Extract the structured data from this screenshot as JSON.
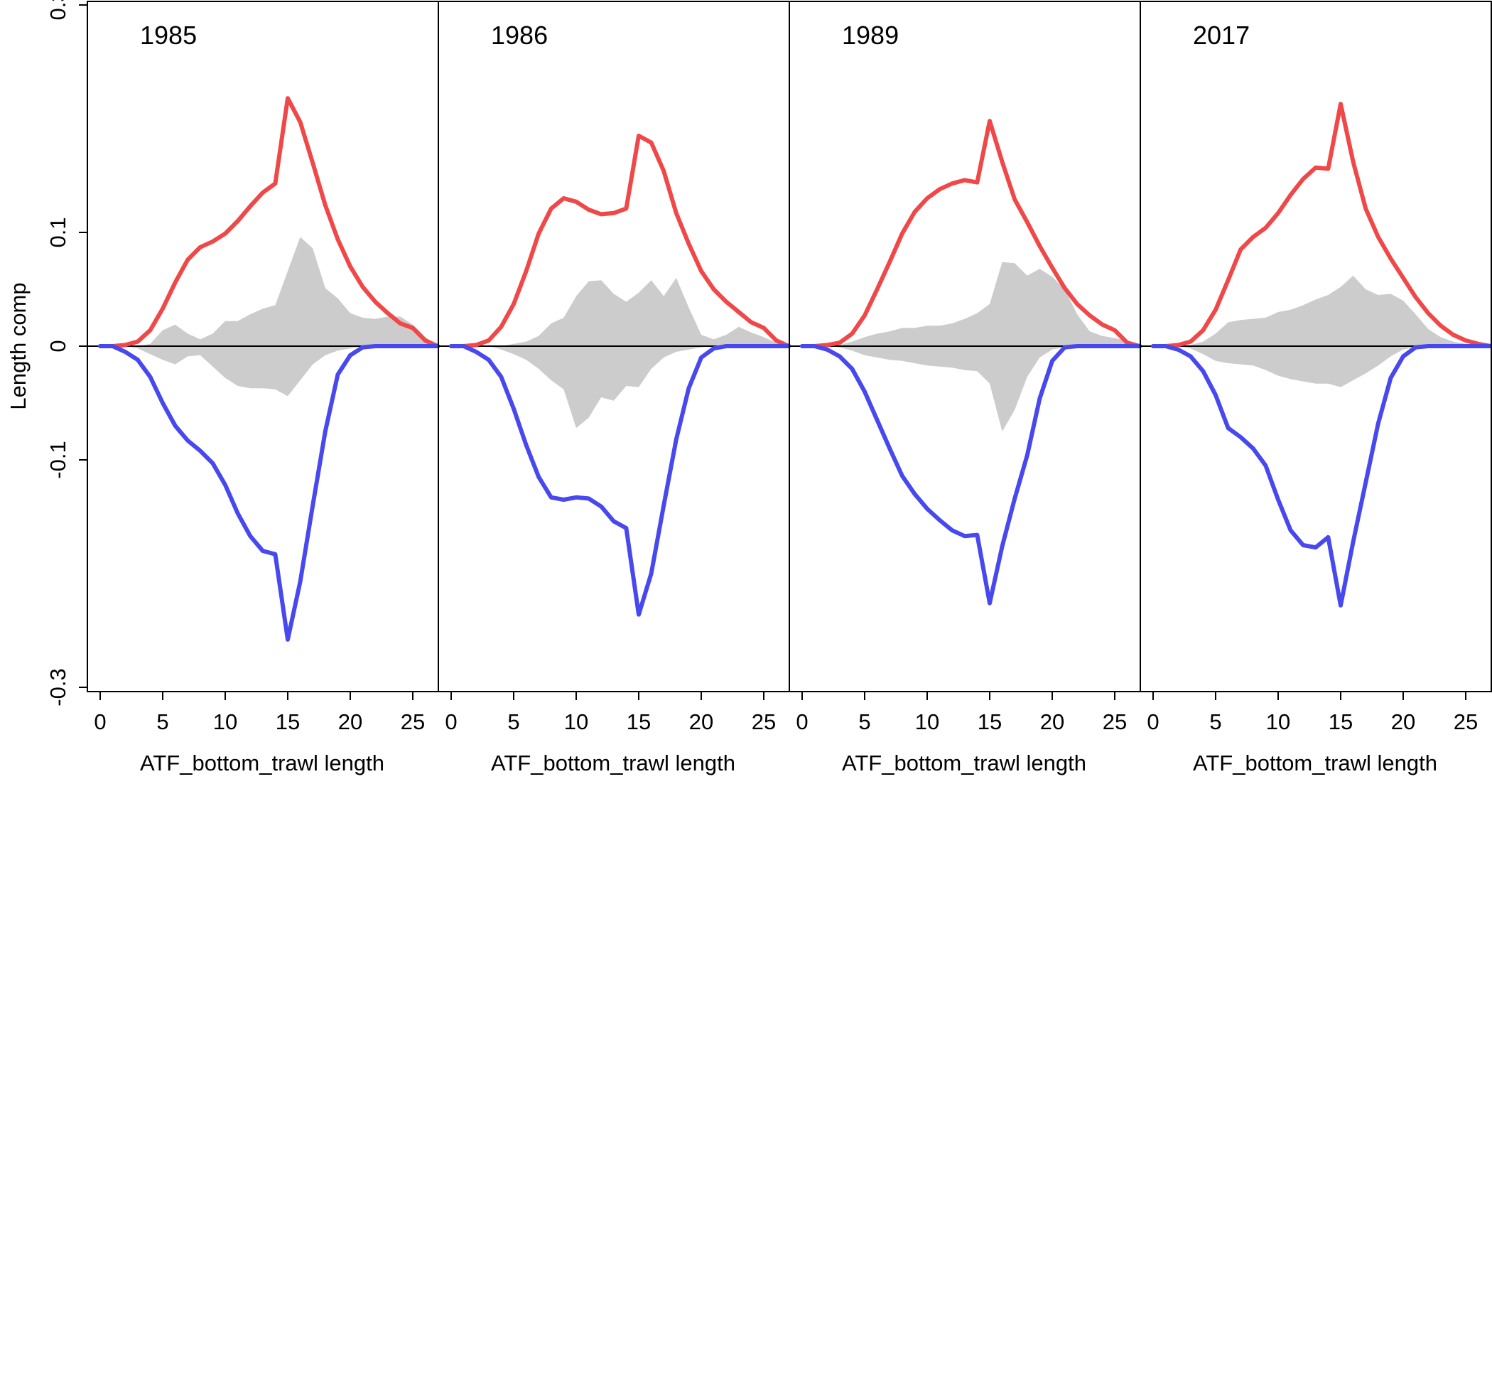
{
  "chart_data": {
    "type": "line",
    "ylabel": "Length comp",
    "xlabel": "ATF_bottom_trawl length",
    "ylim": [
      -0.3,
      0.3
    ],
    "yticks": [
      {
        "value": -0.3,
        "label": "-0.3"
      },
      {
        "value": -0.1,
        "label": "-0.1"
      },
      {
        "value": 0,
        "label": "0"
      },
      {
        "value": 0.1,
        "label": "0.1"
      },
      {
        "value": 0.3,
        "label": "0.3"
      }
    ],
    "xlim": [
      -1,
      27
    ],
    "xticks": [
      0,
      5,
      10,
      15,
      20,
      25
    ],
    "colors": {
      "female": "#f04848",
      "male": "#4848ef",
      "residual": "#cccccc",
      "axis": "#000000"
    },
    "series_names": [
      "female (positive)",
      "male (negative)",
      "residual band"
    ],
    "x": [
      0,
      1,
      2,
      3,
      4,
      5,
      6,
      7,
      8,
      9,
      10,
      11,
      12,
      13,
      14,
      15,
      16,
      17,
      18,
      19,
      20,
      21,
      22,
      23,
      24,
      25,
      26,
      27
    ],
    "panels": [
      {
        "year": "1985",
        "female": [
          0,
          0,
          0.001,
          0.004,
          0.014,
          0.033,
          0.056,
          0.076,
          0.087,
          0.092,
          0.099,
          0.11,
          0.123,
          0.135,
          0.143,
          0.218,
          0.197,
          0.161,
          0.124,
          0.094,
          0.07,
          0.052,
          0.039,
          0.029,
          0.02,
          0.016,
          0.005,
          0
        ],
        "male": [
          0,
          0,
          -0.005,
          -0.012,
          -0.027,
          -0.05,
          -0.07,
          -0.083,
          -0.092,
          -0.103,
          -0.122,
          -0.147,
          -0.167,
          -0.18,
          -0.183,
          -0.258,
          -0.207,
          -0.14,
          -0.075,
          -0.025,
          -0.008,
          -0.001,
          0,
          0,
          0,
          0,
          0,
          0
        ],
        "res_up": [
          0,
          0,
          0,
          0,
          0.002,
          0.014,
          0.019,
          0.011,
          0.006,
          0.011,
          0.022,
          0.022,
          0.028,
          0.033,
          0.036,
          0.066,
          0.096,
          0.086,
          0.051,
          0.042,
          0.029,
          0.025,
          0.024,
          0.026,
          0.026,
          0.019,
          0.008,
          0
        ],
        "res_down": [
          0,
          0,
          0,
          -0.002,
          -0.007,
          -0.012,
          -0.016,
          -0.009,
          -0.008,
          -0.018,
          -0.028,
          -0.035,
          -0.037,
          -0.037,
          -0.038,
          -0.044,
          -0.03,
          -0.016,
          -0.008,
          -0.004,
          -0.002,
          0,
          0,
          0,
          0,
          0,
          0,
          0
        ]
      },
      {
        "year": "1986",
        "female": [
          0,
          0,
          0.001,
          0.005,
          0.017,
          0.037,
          0.066,
          0.099,
          0.121,
          0.13,
          0.127,
          0.12,
          0.116,
          0.117,
          0.121,
          0.185,
          0.179,
          0.154,
          0.117,
          0.09,
          0.066,
          0.05,
          0.039,
          0.03,
          0.021,
          0.016,
          0.005,
          0
        ],
        "male": [
          0,
          0,
          -0.005,
          -0.012,
          -0.027,
          -0.055,
          -0.087,
          -0.115,
          -0.133,
          -0.135,
          -0.133,
          -0.134,
          -0.141,
          -0.154,
          -0.16,
          -0.236,
          -0.2,
          -0.14,
          -0.082,
          -0.037,
          -0.01,
          -0.002,
          0,
          0,
          0,
          0,
          0,
          0
        ],
        "res_up": [
          0,
          0,
          0,
          0,
          0,
          0.002,
          0.004,
          0.009,
          0.02,
          0.025,
          0.044,
          0.057,
          0.058,
          0.046,
          0.039,
          0.047,
          0.058,
          0.044,
          0.06,
          0.034,
          0.01,
          0.006,
          0.01,
          0.017,
          0.012,
          0.008,
          0.003,
          0
        ],
        "res_down": [
          0,
          0,
          0,
          0,
          -0.003,
          -0.007,
          -0.012,
          -0.02,
          -0.03,
          -0.038,
          -0.072,
          -0.063,
          -0.045,
          -0.048,
          -0.035,
          -0.036,
          -0.02,
          -0.01,
          -0.005,
          -0.003,
          -0.001,
          0,
          0,
          0,
          0,
          0,
          0,
          0
        ]
      },
      {
        "year": "1989",
        "female": [
          0,
          0,
          0.001,
          0.003,
          0.011,
          0.027,
          0.05,
          0.074,
          0.099,
          0.118,
          0.13,
          0.138,
          0.143,
          0.146,
          0.144,
          0.198,
          0.162,
          0.129,
          0.109,
          0.088,
          0.069,
          0.051,
          0.037,
          0.027,
          0.019,
          0.014,
          0.003,
          0
        ],
        "male": [
          0,
          0,
          -0.003,
          -0.009,
          -0.02,
          -0.04,
          -0.065,
          -0.09,
          -0.114,
          -0.13,
          -0.143,
          -0.153,
          -0.162,
          -0.167,
          -0.166,
          -0.226,
          -0.176,
          -0.134,
          -0.096,
          -0.046,
          -0.013,
          -0.001,
          0,
          0,
          0,
          0,
          0,
          0
        ],
        "res_up": [
          0,
          0,
          0,
          0.001,
          0.004,
          0.008,
          0.011,
          0.013,
          0.016,
          0.016,
          0.018,
          0.018,
          0.02,
          0.024,
          0.029,
          0.037,
          0.074,
          0.073,
          0.062,
          0.068,
          0.061,
          0.05,
          0.028,
          0.013,
          0.009,
          0.007,
          0.005,
          0
        ],
        "res_down": [
          0,
          0,
          0,
          -0.001,
          -0.004,
          -0.008,
          -0.01,
          -0.012,
          -0.013,
          -0.015,
          -0.017,
          -0.018,
          -0.019,
          -0.021,
          -0.022,
          -0.033,
          -0.075,
          -0.056,
          -0.027,
          -0.01,
          -0.003,
          -0.001,
          0,
          0,
          0,
          0,
          0,
          0
        ]
      },
      {
        "year": "2017",
        "female": [
          0,
          0,
          0.001,
          0.004,
          0.014,
          0.032,
          0.058,
          0.085,
          0.096,
          0.104,
          0.117,
          0.133,
          0.147,
          0.157,
          0.156,
          0.213,
          0.162,
          0.121,
          0.096,
          0.077,
          0.06,
          0.043,
          0.029,
          0.018,
          0.01,
          0.005,
          0.002,
          0
        ],
        "male": [
          0,
          0,
          -0.003,
          -0.009,
          -0.022,
          -0.043,
          -0.072,
          -0.08,
          -0.09,
          -0.105,
          -0.135,
          -0.162,
          -0.175,
          -0.177,
          -0.168,
          -0.228,
          -0.172,
          -0.12,
          -0.068,
          -0.028,
          -0.009,
          -0.001,
          0,
          0,
          0,
          0,
          0,
          0
        ],
        "res_up": [
          0,
          0,
          0,
          0.001,
          0.004,
          0.011,
          0.021,
          0.023,
          0.024,
          0.025,
          0.03,
          0.032,
          0.036,
          0.041,
          0.045,
          0.052,
          0.062,
          0.05,
          0.045,
          0.046,
          0.04,
          0.028,
          0.015,
          0.008,
          0.004,
          0.002,
          0.001,
          0
        ],
        "res_down": [
          0,
          0,
          0,
          -0.002,
          -0.007,
          -0.013,
          -0.015,
          -0.016,
          -0.017,
          -0.021,
          -0.026,
          -0.029,
          -0.031,
          -0.033,
          -0.033,
          -0.036,
          -0.03,
          -0.024,
          -0.017,
          -0.009,
          -0.003,
          -0.001,
          0,
          0,
          0,
          0,
          0,
          0
        ]
      }
    ]
  }
}
